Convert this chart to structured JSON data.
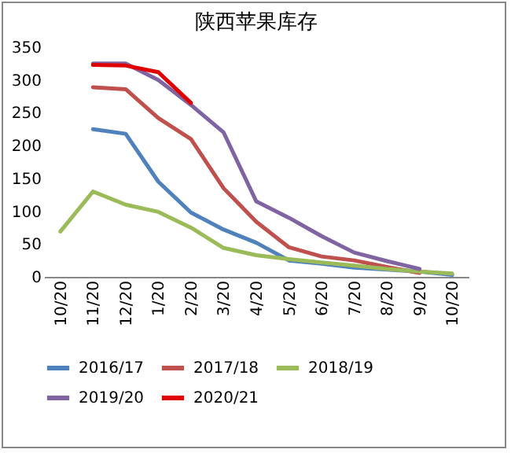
{
  "chart_data": {
    "type": "line",
    "title": "陕西苹果库存",
    "categories": [
      "10/20",
      "11/20",
      "12/20",
      "1/20",
      "2/20",
      "3/20",
      "4/20",
      "5/20",
      "6/20",
      "7/20",
      "8/20",
      "9/20",
      "10/20"
    ],
    "ylim": [
      0,
      350
    ],
    "yticks": [
      0,
      50,
      100,
      150,
      200,
      250,
      300,
      350
    ],
    "grid": false,
    "legend": "bottom",
    "marker": "none",
    "line_style": "solid",
    "series": [
      {
        "name": "2016/17",
        "color": "#4f81bd",
        "values": [
          null,
          225,
          218,
          145,
          98,
          72,
          52,
          25,
          20,
          14,
          11,
          8,
          3
        ]
      },
      {
        "name": "2017/18",
        "color": "#c0504d",
        "values": [
          null,
          289,
          286,
          242,
          210,
          135,
          84,
          45,
          31,
          25,
          15,
          6,
          null
        ]
      },
      {
        "name": "2018/19",
        "color": "#9bbb59",
        "values": [
          69,
          130,
          110,
          99,
          75,
          44,
          33,
          27,
          22,
          17,
          12,
          8,
          5
        ]
      },
      {
        "name": "2019/20",
        "color": "#8064a2",
        "values": [
          null,
          325,
          325,
          300,
          262,
          220,
          115,
          90,
          62,
          37,
          24,
          12,
          null
        ]
      },
      {
        "name": "2020/21",
        "color": "#e00000",
        "values": [
          null,
          323,
          322,
          312,
          265,
          null,
          null,
          null,
          null,
          null,
          null,
          null,
          null
        ]
      }
    ]
  }
}
